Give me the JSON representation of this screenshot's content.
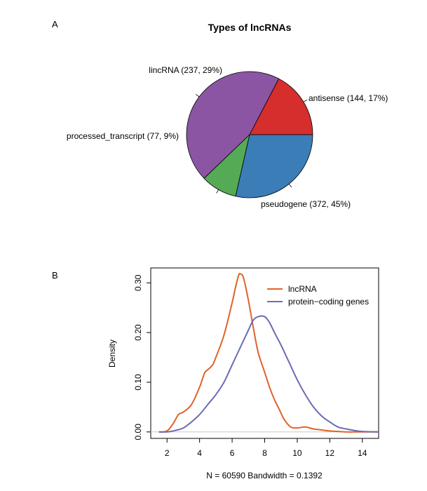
{
  "panels": {
    "a_label": "A",
    "b_label": "B"
  },
  "chart_data": [
    {
      "type": "pie",
      "title": "Types of lncRNAs",
      "slices": [
        {
          "name": "antisense",
          "value": 144,
          "percent": 17,
          "label": "antisense (144, 17%)",
          "color": "#d62d2d"
        },
        {
          "name": "pseudogene",
          "value": 372,
          "percent": 45,
          "label": "pseudogene (372, 45%)",
          "color": "#8b55a3"
        },
        {
          "name": "processed_transcript",
          "value": 77,
          "percent": 9,
          "label": "processed_transcript (77, 9%)",
          "color": "#55aa55"
        },
        {
          "name": "lincRNA",
          "value": 237,
          "percent": 29,
          "label": "lincRNA (237, 29%)",
          "color": "#3b7db7"
        }
      ]
    },
    {
      "type": "line",
      "title": "",
      "xlabel": "N = 60590   Bandwidth = 0.1392",
      "ylabel": "Density",
      "xlim": [
        1,
        15
      ],
      "ylim": [
        -0.013,
        0.33
      ],
      "xticks": [
        2,
        4,
        6,
        8,
        10,
        12,
        14
      ],
      "xtick_labels": [
        "2",
        "4",
        "6",
        "8",
        "10",
        "12",
        "14"
      ],
      "yticks": [
        0.0,
        0.1,
        0.2,
        0.3
      ],
      "ytick_labels": [
        "0.00",
        "0.10",
        "0.20",
        "0.30"
      ],
      "legend_position": "top-right",
      "series": [
        {
          "name": "lncRNA",
          "color": "#e0622a",
          "x": [
            1.5,
            2.0,
            2.4,
            2.7,
            3.0,
            3.5,
            4.0,
            4.3,
            4.5,
            4.8,
            5.0,
            5.5,
            6.0,
            6.2,
            6.4,
            6.5,
            6.7,
            7.0,
            7.3,
            7.6,
            8.0,
            8.3,
            8.6,
            8.9,
            9.2,
            9.6,
            10.0,
            10.5,
            11.0,
            11.5,
            12.0,
            12.5,
            13.0,
            13.5,
            14.0,
            15.0
          ],
          "y": [
            0.0,
            0.002,
            0.018,
            0.035,
            0.04,
            0.055,
            0.09,
            0.118,
            0.125,
            0.135,
            0.15,
            0.195,
            0.26,
            0.29,
            0.315,
            0.318,
            0.31,
            0.265,
            0.21,
            0.16,
            0.12,
            0.09,
            0.065,
            0.045,
            0.025,
            0.01,
            0.008,
            0.01,
            0.006,
            0.004,
            0.002,
            0.001,
            0.0,
            0.0,
            0.0,
            0.0
          ]
        },
        {
          "name": "protein−coding genes",
          "color": "#6b6bb5",
          "x": [
            1.5,
            2.0,
            2.5,
            3.0,
            3.5,
            4.0,
            4.5,
            5.0,
            5.5,
            6.0,
            6.5,
            7.0,
            7.3,
            7.6,
            8.0,
            8.3,
            8.6,
            9.0,
            9.5,
            10.0,
            10.5,
            11.0,
            11.5,
            12.0,
            12.5,
            13.0,
            13.5,
            14.0,
            15.0
          ],
          "y": [
            0.0,
            0.0,
            0.003,
            0.008,
            0.02,
            0.035,
            0.055,
            0.075,
            0.1,
            0.135,
            0.17,
            0.205,
            0.225,
            0.232,
            0.232,
            0.22,
            0.2,
            0.175,
            0.14,
            0.105,
            0.075,
            0.05,
            0.032,
            0.02,
            0.01,
            0.006,
            0.003,
            0.001,
            0.0
          ]
        }
      ]
    }
  ]
}
